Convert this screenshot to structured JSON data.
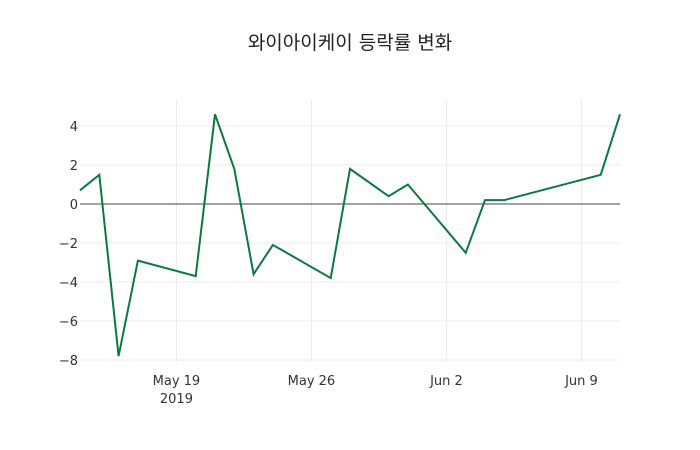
{
  "chart_data": {
    "type": "line",
    "title": "와이아이케이 등락률 변화",
    "xlabel": "",
    "ylabel": "",
    "x": [
      "2019-05-14",
      "2019-05-15",
      "2019-05-16",
      "2019-05-17",
      "2019-05-20",
      "2019-05-21",
      "2019-05-22",
      "2019-05-23",
      "2019-05-24",
      "2019-05-27",
      "2019-05-28",
      "2019-05-30",
      "2019-05-31",
      "2019-06-03",
      "2019-06-04",
      "2019-06-05",
      "2019-06-10",
      "2019-06-11"
    ],
    "series": [
      {
        "name": "등락률",
        "color": "#0b7a3e",
        "values": [
          0.7,
          1.5,
          -7.8,
          -2.9,
          -3.7,
          4.6,
          1.8,
          -3.6,
          -2.1,
          -3.8,
          1.8,
          0.4,
          1.0,
          -2.5,
          0.2,
          0.2,
          1.5,
          4.6
        ]
      }
    ],
    "ylim": [
      -8.2,
      5.2
    ],
    "xlim": [
      "2019-05-14",
      "2019-06-11"
    ],
    "yticks": [
      4,
      2,
      0,
      -2,
      -4,
      -6,
      -8
    ],
    "ytick_labels": [
      "4",
      "2",
      "0",
      "−2",
      "−4",
      "−6",
      "−8"
    ],
    "xticks": [
      "2019-05-19",
      "2019-05-26",
      "2019-06-02",
      "2019-06-09"
    ],
    "xtick_labels": [
      "May 19",
      "May 26",
      "Jun 2",
      "Jun 9"
    ],
    "xtick_sublabel": "2019",
    "grid": true,
    "zeroline": true,
    "legend": false
  }
}
